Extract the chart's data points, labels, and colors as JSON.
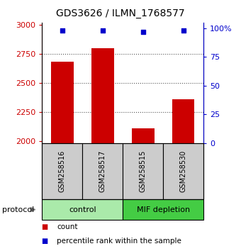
{
  "title": "GDS3626 / ILMN_1768577",
  "samples": [
    "GSM258516",
    "GSM258517",
    "GSM258515",
    "GSM258530"
  ],
  "counts": [
    2680,
    2800,
    2110,
    2360
  ],
  "percentile_ranks": [
    98,
    98,
    97,
    98
  ],
  "ylim_left": [
    1980,
    3020
  ],
  "ylim_right": [
    0,
    105
  ],
  "yticks_left": [
    2000,
    2250,
    2500,
    2750,
    3000
  ],
  "yticks_right": [
    0,
    25,
    50,
    75,
    100
  ],
  "ytick_labels_right": [
    "0",
    "25",
    "50",
    "75",
    "100%"
  ],
  "bar_color": "#cc0000",
  "dot_color": "#0000cc",
  "bar_width": 0.55,
  "groups": [
    {
      "label": "control",
      "indices": [
        0,
        1
      ],
      "color": "#aaeaaa"
    },
    {
      "label": "MIF depletion",
      "indices": [
        2,
        3
      ],
      "color": "#44cc44"
    }
  ],
  "protocol_label": "protocol",
  "legend_items": [
    {
      "color": "#cc0000",
      "label": "count"
    },
    {
      "color": "#0000cc",
      "label": "percentile rank within the sample"
    }
  ],
  "grid_color": "#555555",
  "background_color": "#ffffff",
  "sample_box_color": "#cccccc",
  "title_fontsize": 10,
  "tick_fontsize": 8,
  "label_fontsize": 8
}
